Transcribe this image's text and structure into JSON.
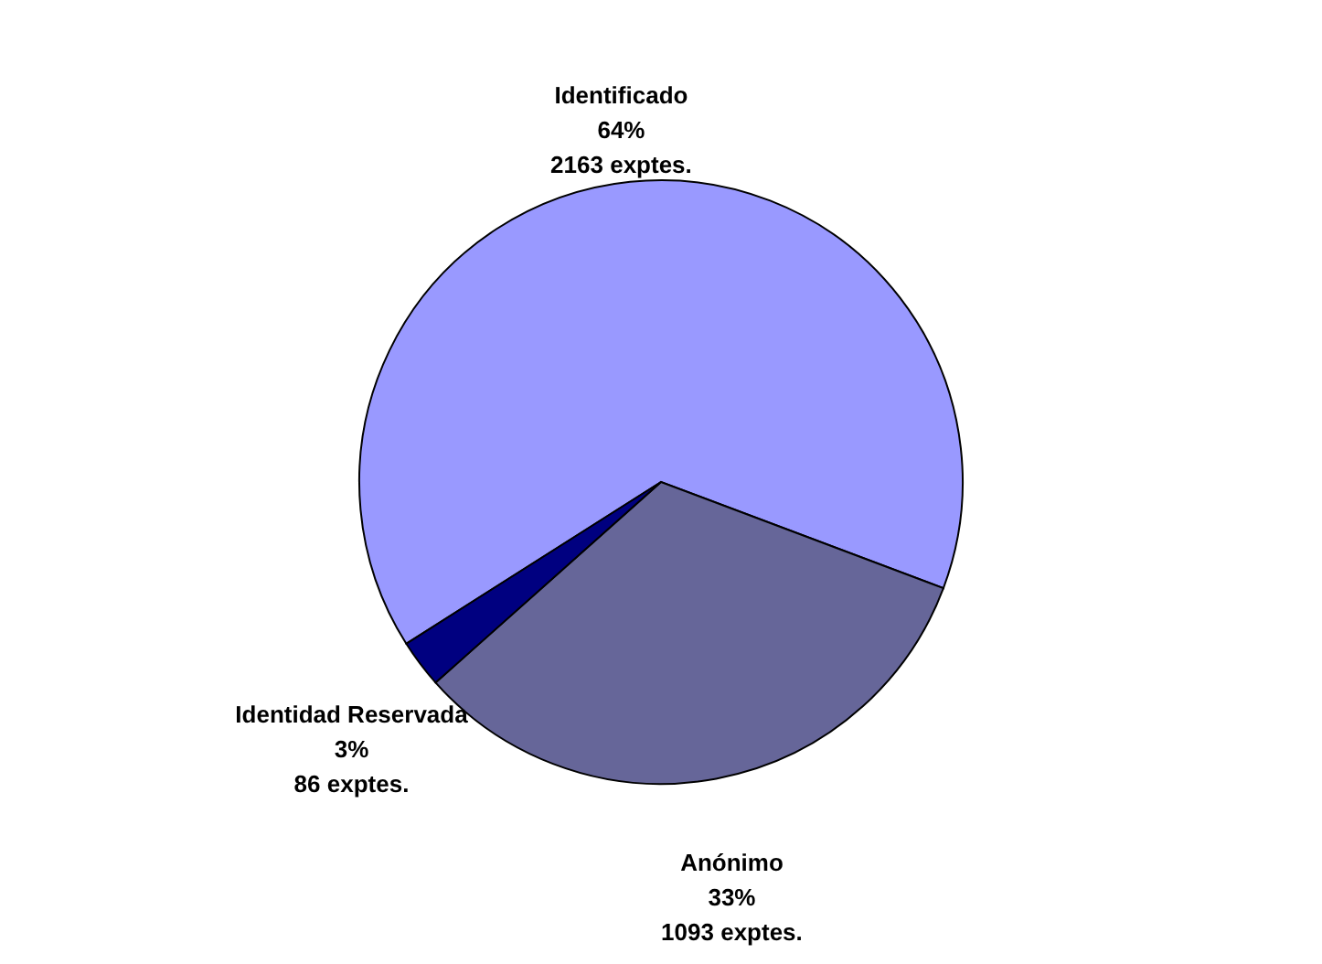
{
  "chart_data": {
    "type": "pie",
    "categories": [
      "Identificado",
      "Anónimo",
      "Identidad Reservada"
    ],
    "values": [
      2163,
      1093,
      86
    ],
    "colors": [
      "#9999ff",
      "#666699",
      "#000080"
    ],
    "value_labels": [
      "64%\n2163 exptes.",
      "33%\n1093 exptes.",
      "3%\n86 exptes."
    ]
  }
}
